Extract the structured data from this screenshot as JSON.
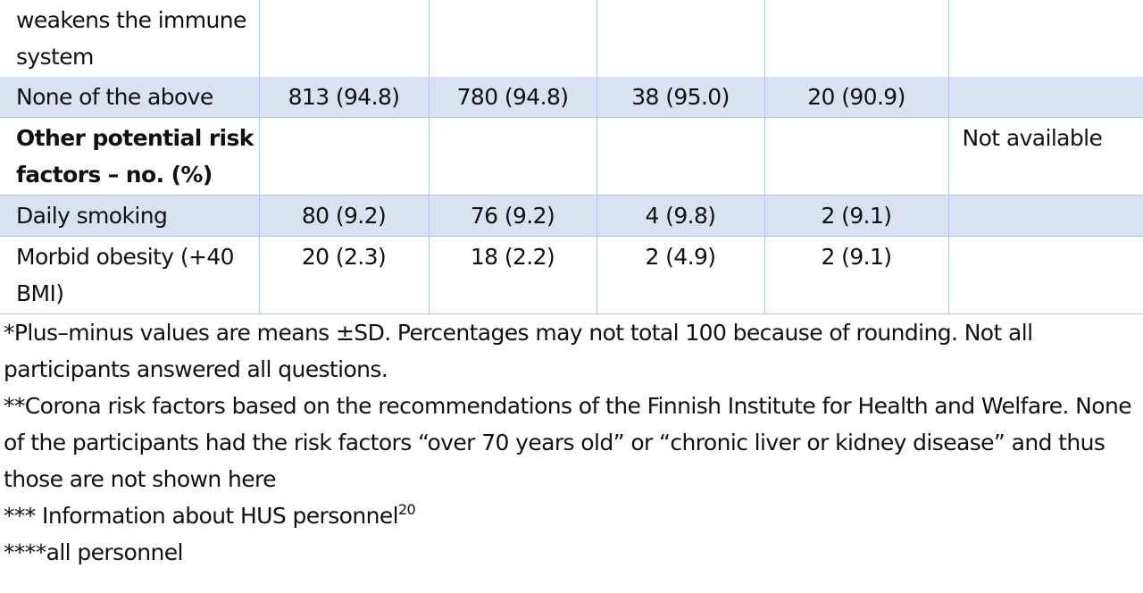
{
  "table": {
    "rows": [
      [
        "weakens the immune system",
        null,
        null,
        null,
        null,
        null
      ],
      [
        "None of the above",
        "813 (94.8)",
        "780 (94.8)",
        "38 (95.0)",
        "20 (90.9)",
        null
      ],
      [
        "Other potential risk factors – no. (%)",
        null,
        null,
        null,
        null,
        "Not available"
      ],
      [
        "Daily smoking",
        "80 (9.2)",
        "76 (9.2)",
        "4 (9.8)",
        "2 (9.1)",
        null
      ],
      [
        "Morbid obesity (+40 BMI)",
        "20 (2.3)",
        "18 (2.2)",
        "2 (4.9)",
        "2 (9.1)",
        null
      ]
    ]
  },
  "footnotes": [
    "*Plus–minus values are means ±SD. Percentages may not total 100 because of rounding. Not all participants answered all questions.",
    "**Corona risk factors based on the recommendations of the Finnish Institute for Health and Welfare. None of the participants had the risk factors “over 70 years old” or “chronic liver or kidney disease” and thus those are not shown here",
    {
      "text": "*** Information about HUS personnel",
      "superscript": "20"
    },
    "****all personnel"
  ]
}
